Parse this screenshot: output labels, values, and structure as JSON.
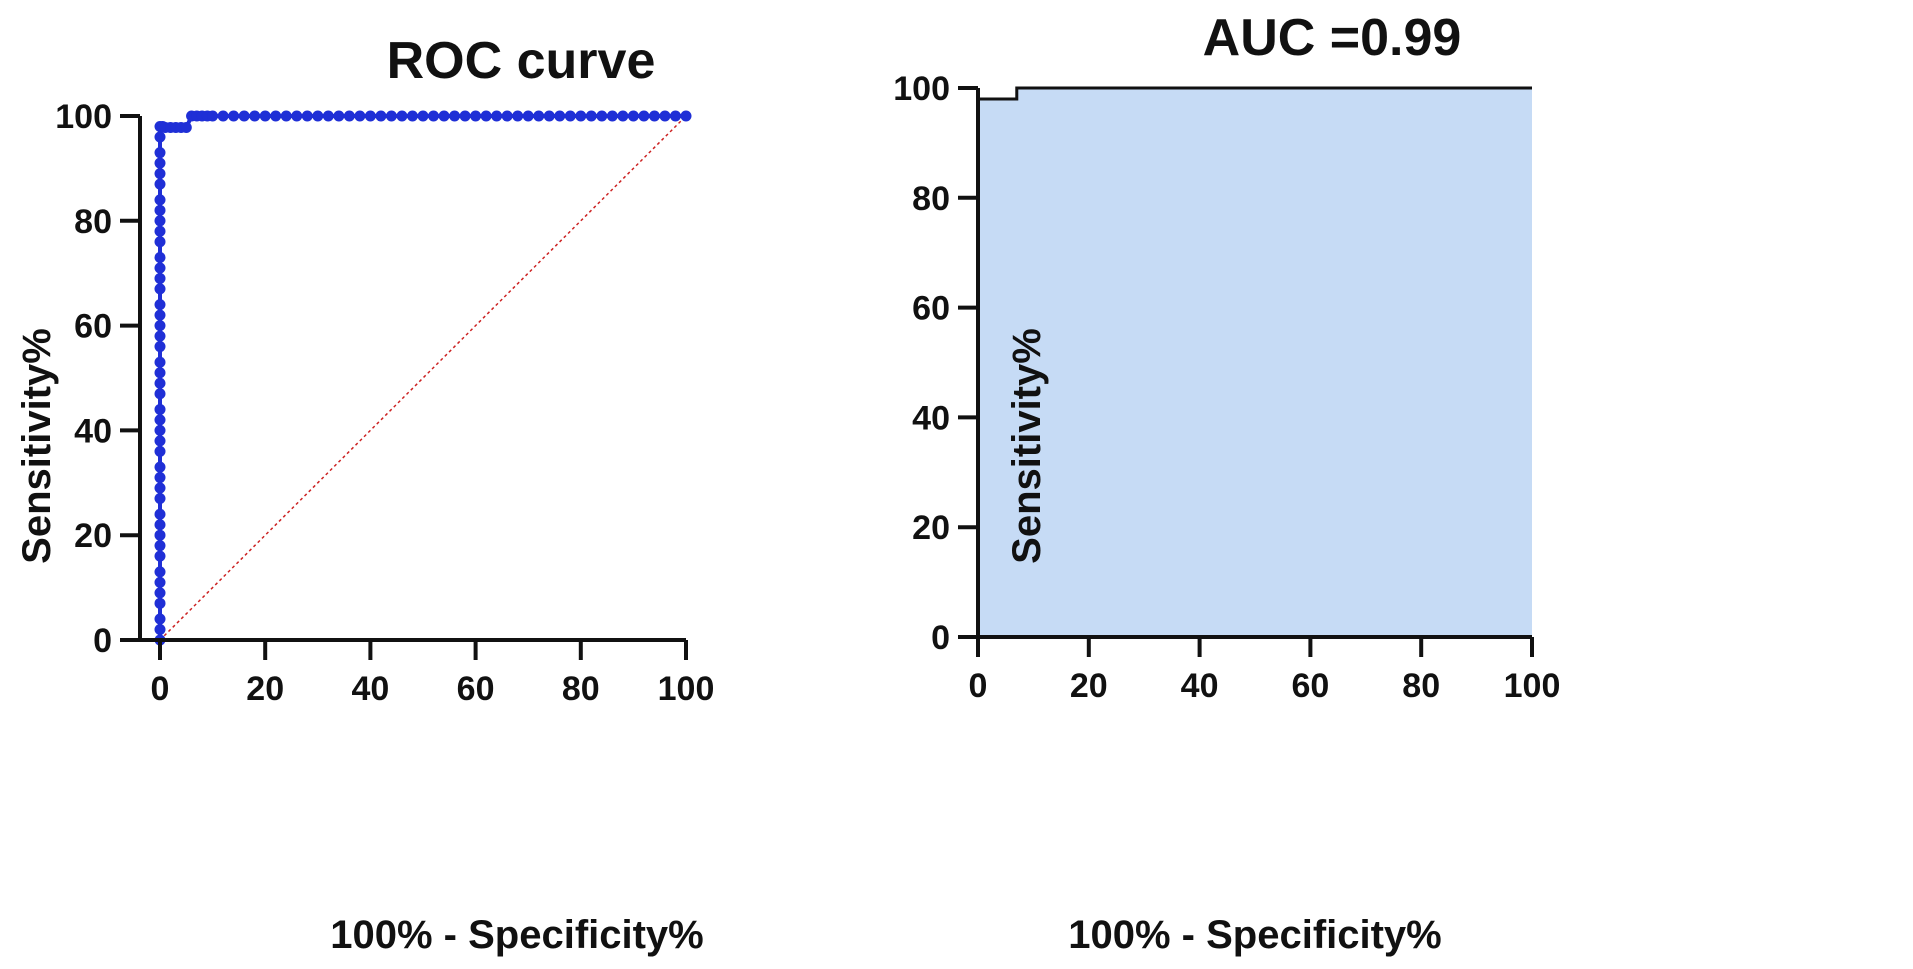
{
  "chart_data": [
    {
      "type": "scatter",
      "title": "ROC curve",
      "xlabel": "100% - Specificity%",
      "ylabel": "Sensitivity%",
      "xlim": [
        0,
        100
      ],
      "ylim": [
        0,
        100
      ],
      "xticks": [
        "0",
        "20",
        "40",
        "60",
        "80",
        "100"
      ],
      "yticks": [
        "0",
        "20",
        "40",
        "60",
        "80",
        "100"
      ],
      "grid": false,
      "series": [
        {
          "color": "#1f2fd6",
          "x": [
            0,
            0,
            0,
            0,
            0,
            0,
            0,
            0,
            0,
            0,
            0,
            0,
            0,
            0,
            0,
            0,
            0,
            0,
            0,
            0,
            0,
            0,
            0,
            0,
            0,
            0,
            0,
            0,
            0,
            0,
            0,
            0,
            0,
            0,
            0,
            0,
            0,
            0,
            0,
            0,
            0,
            0,
            0,
            0,
            0,
            0.5,
            1,
            2,
            3,
            4,
            5,
            6,
            7,
            8,
            9,
            10,
            12,
            14,
            16,
            18,
            20,
            22,
            24,
            26,
            28,
            30,
            32,
            34,
            36,
            38,
            40,
            42,
            44,
            46,
            48,
            50,
            52,
            54,
            56,
            58,
            60,
            62,
            64,
            66,
            68,
            70,
            72,
            74,
            76,
            78,
            80,
            82,
            84,
            86,
            88,
            90,
            92,
            94,
            96,
            98,
            100
          ],
          "y": [
            0,
            2,
            4,
            7,
            9,
            11,
            13,
            16,
            18,
            20,
            22,
            24,
            27,
            29,
            31,
            33,
            36,
            38,
            40,
            42,
            44,
            47,
            49,
            51,
            53,
            56,
            58,
            60,
            62,
            64,
            67,
            69,
            71,
            73,
            76,
            78,
            80,
            82,
            84,
            87,
            89,
            91,
            93,
            96,
            98,
            98,
            97.8,
            97.8,
            97.8,
            97.8,
            97.8,
            100,
            100,
            100,
            100,
            100,
            100,
            100,
            100,
            100,
            100,
            100,
            100,
            100,
            100,
            100,
            100,
            100,
            100,
            100,
            100,
            100,
            100,
            100,
            100,
            100,
            100,
            100,
            100,
            100,
            100,
            100,
            100,
            100,
            100,
            100,
            100,
            100,
            100,
            100,
            100,
            100,
            100,
            100,
            100,
            100,
            100,
            100,
            100,
            100,
            100
          ]
        },
        {
          "type": "line",
          "color": "#cc2222",
          "dashed": true,
          "x": [
            0,
            100
          ],
          "y": [
            0,
            100
          ]
        }
      ]
    },
    {
      "type": "area",
      "title": "AUC =0.99",
      "xlabel": "100% - Specificity%",
      "ylabel": "Sensitivity%",
      "xlim": [
        0,
        100
      ],
      "ylim": [
        0,
        100
      ],
      "xticks": [
        "0",
        "20",
        "40",
        "60",
        "80",
        "100"
      ],
      "yticks": [
        "0",
        "20",
        "40",
        "60",
        "80",
        "100"
      ],
      "grid": false,
      "series": [
        {
          "color": "#c6dbf5",
          "x": [
            0,
            0,
            7,
            7,
            100
          ],
          "y": [
            0,
            98,
            98,
            100,
            100
          ]
        }
      ]
    }
  ]
}
